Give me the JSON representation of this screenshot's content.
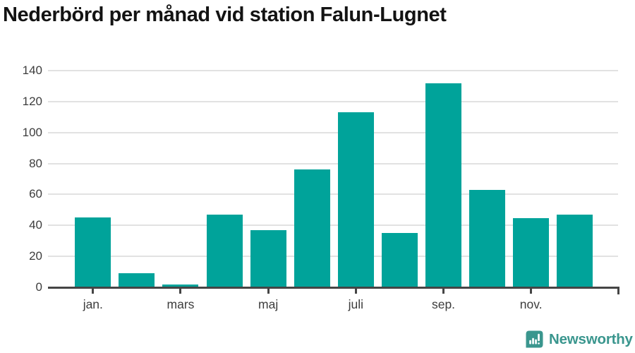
{
  "chart_data": {
    "type": "bar",
    "title": "Nederbörd per månad vid station Falun-Lugnet",
    "values": [
      45,
      9,
      2,
      47,
      37,
      76,
      113,
      35,
      132,
      63,
      44.5,
      47
    ],
    "x_tick_labels": [
      "jan.",
      "mars",
      "maj",
      "juli",
      "sep.",
      "nov."
    ],
    "x_tick_bar_indices": [
      0,
      2,
      4,
      6,
      8,
      10
    ],
    "y_ticks": [
      0,
      20,
      40,
      60,
      80,
      100,
      120,
      140
    ],
    "ylim": [
      0,
      140
    ],
    "grid": true,
    "legend": false,
    "bar_color": "#00a39a",
    "gridline_color": "#e2e2e2",
    "axis_color": "#454545",
    "tick_label_color": "#3d3d3d",
    "title_color": "#131313"
  },
  "branding": {
    "brand_name": "Newsworthy",
    "brand_color": "#3a968e",
    "logo_icon": "bar-chart-exclamation-bubble"
  }
}
